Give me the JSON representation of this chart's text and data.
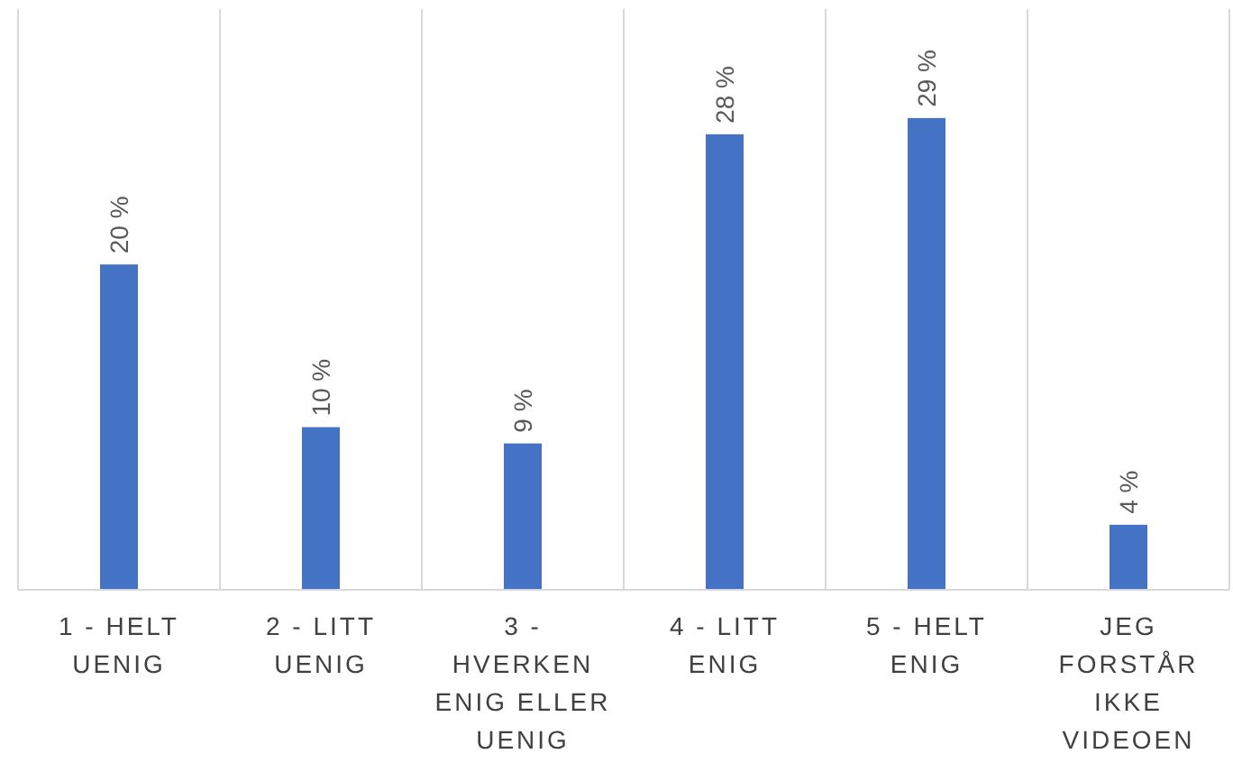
{
  "chart_data": {
    "type": "bar",
    "categories": [
      "1 - HELT UENIG",
      "2 - LITT UENIG",
      "3 - HVERKEN ENIG ELLER UENIG",
      "4 - LITT ENIG",
      "5 - HELT ENIG",
      "JEG FORSTÅR IKKE VIDEOEN"
    ],
    "values": [
      20,
      10,
      9,
      28,
      29,
      4
    ],
    "value_labels": [
      "20 %",
      "10 %",
      "9 %",
      "28 %",
      "29 %",
      "4 %"
    ],
    "color": "#4472c4",
    "ylim": [
      0,
      35.7
    ],
    "grid": "x",
    "tick_labels": "x"
  }
}
